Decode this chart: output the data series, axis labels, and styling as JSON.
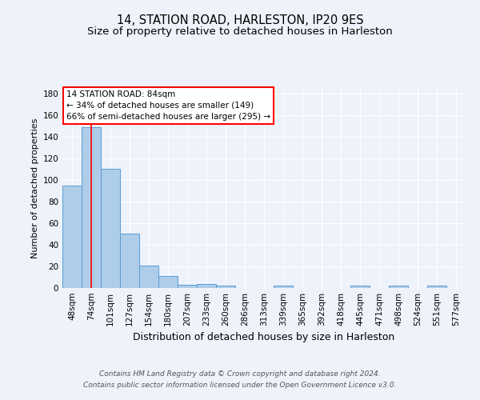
{
  "title1": "14, STATION ROAD, HARLESTON, IP20 9ES",
  "title2": "Size of property relative to detached houses in Harleston",
  "xlabel": "Distribution of detached houses by size in Harleston",
  "ylabel": "Number of detached properties",
  "bar_labels": [
    "48sqm",
    "74sqm",
    "101sqm",
    "127sqm",
    "154sqm",
    "180sqm",
    "207sqm",
    "233sqm",
    "260sqm",
    "286sqm",
    "313sqm",
    "339sqm",
    "365sqm",
    "392sqm",
    "418sqm",
    "445sqm",
    "471sqm",
    "498sqm",
    "524sqm",
    "551sqm",
    "577sqm"
  ],
  "values": [
    95,
    149,
    110,
    50,
    21,
    11,
    3,
    4,
    2,
    0,
    0,
    2,
    0,
    0,
    0,
    2,
    0,
    2,
    0,
    2,
    0
  ],
  "bar_color": "#aecde8",
  "bar_edge_color": "#5b9bd5",
  "red_line_x": 1,
  "ylim": [
    0,
    185
  ],
  "yticks": [
    0,
    20,
    40,
    60,
    80,
    100,
    120,
    140,
    160,
    180
  ],
  "annotation_line1": "14 STATION ROAD: 84sqm",
  "annotation_line2": "← 34% of detached houses are smaller (149)",
  "annotation_line3": "66% of semi-detached houses are larger (295) →",
  "footer1": "Contains HM Land Registry data © Crown copyright and database right 2024.",
  "footer2": "Contains public sector information licensed under the Open Government Licence v3.0.",
  "background_color": "#eef2fb",
  "plot_bg_color": "#eef2fb",
  "grid_color": "#ffffff",
  "title1_fontsize": 10.5,
  "title2_fontsize": 9.5,
  "xlabel_fontsize": 9,
  "ylabel_fontsize": 8,
  "tick_fontsize": 7.5,
  "annot_fontsize": 7.5,
  "footer_fontsize": 6.5
}
